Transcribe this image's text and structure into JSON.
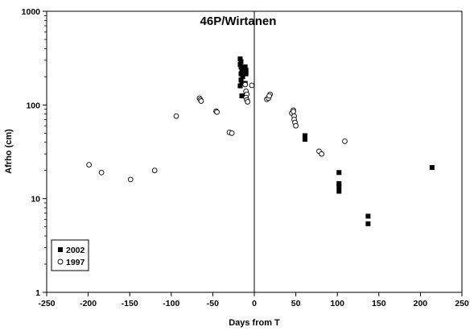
{
  "chart_data": {
    "type": "scatter",
    "title": "46P/Wirtanen",
    "xlabel": "Days from T",
    "ylabel": "Afrho (cm)",
    "xlim": [
      -250,
      250
    ],
    "ylim": [
      1,
      1000
    ],
    "yscale": "log",
    "x_ticks": [
      "-250",
      "-200",
      "-150",
      "-100",
      "-50",
      "0",
      "50",
      "100",
      "150",
      "200",
      "250"
    ],
    "y_ticks": [
      "1",
      "10",
      "100",
      "1000"
    ],
    "vertical_reference_line_x": 0,
    "legend_position": "bottom-left",
    "series": [
      {
        "name": "2002",
        "marker": "filled-square",
        "color": "#000000",
        "points": [
          {
            "x": -17,
            "y": 310
          },
          {
            "x": -16,
            "y": 290
          },
          {
            "x": -17,
            "y": 270
          },
          {
            "x": -16,
            "y": 255
          },
          {
            "x": -15,
            "y": 230
          },
          {
            "x": -16,
            "y": 215
          },
          {
            "x": -14,
            "y": 200
          },
          {
            "x": -16,
            "y": 185
          },
          {
            "x": -15,
            "y": 170
          },
          {
            "x": -17,
            "y": 160
          },
          {
            "x": -11,
            "y": 255
          },
          {
            "x": -10,
            "y": 235
          },
          {
            "x": -10,
            "y": 215
          },
          {
            "x": -11,
            "y": 170
          },
          {
            "x": -15,
            "y": 125
          },
          {
            "x": 61,
            "y": 47
          },
          {
            "x": 61,
            "y": 43
          },
          {
            "x": 102,
            "y": 19
          },
          {
            "x": 102,
            "y": 14.5
          },
          {
            "x": 102,
            "y": 13.5
          },
          {
            "x": 102,
            "y": 12
          },
          {
            "x": 137,
            "y": 6.5
          },
          {
            "x": 137,
            "y": 5.4
          },
          {
            "x": 214,
            "y": 21.5
          }
        ]
      },
      {
        "name": "1997",
        "marker": "open-circle",
        "color": "#000000",
        "points": [
          {
            "x": -199,
            "y": 23
          },
          {
            "x": -184,
            "y": 19
          },
          {
            "x": -149,
            "y": 16
          },
          {
            "x": -120,
            "y": 20
          },
          {
            "x": -94,
            "y": 76
          },
          {
            "x": -66,
            "y": 118
          },
          {
            "x": -65,
            "y": 114
          },
          {
            "x": -64,
            "y": 110
          },
          {
            "x": -46,
            "y": 86
          },
          {
            "x": -45,
            "y": 84
          },
          {
            "x": -30,
            "y": 51
          },
          {
            "x": -27,
            "y": 50
          },
          {
            "x": -11,
            "y": 165
          },
          {
            "x": -10,
            "y": 140
          },
          {
            "x": -9,
            "y": 130
          },
          {
            "x": -10,
            "y": 120
          },
          {
            "x": -9,
            "y": 113
          },
          {
            "x": -8,
            "y": 108
          },
          {
            "x": -3,
            "y": 162
          },
          {
            "x": 15,
            "y": 115
          },
          {
            "x": 17,
            "y": 118
          },
          {
            "x": 19,
            "y": 130
          },
          {
            "x": 18,
            "y": 125
          },
          {
            "x": 45,
            "y": 82
          },
          {
            "x": 47,
            "y": 88
          },
          {
            "x": 48,
            "y": 76
          },
          {
            "x": 48,
            "y": 70
          },
          {
            "x": 49,
            "y": 65
          },
          {
            "x": 50,
            "y": 60
          },
          {
            "x": 47,
            "y": 85
          },
          {
            "x": 78,
            "y": 32
          },
          {
            "x": 81,
            "y": 30
          },
          {
            "x": 109,
            "y": 41
          }
        ]
      }
    ]
  }
}
